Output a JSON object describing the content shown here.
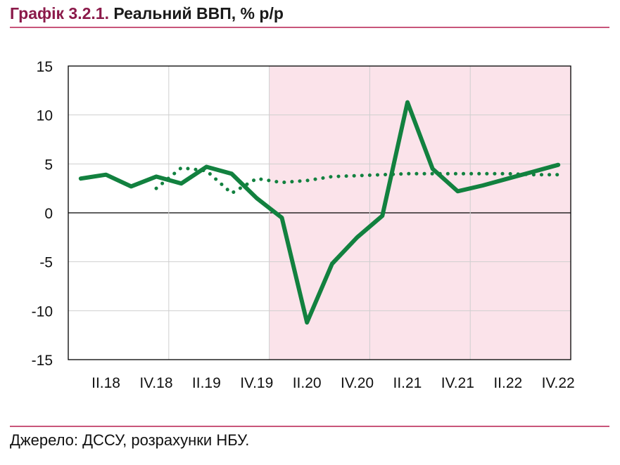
{
  "header": {
    "figure_number": "Графік 3.2.1.",
    "title": "Реальний ВВП, % р/р"
  },
  "footer": {
    "source": "Джерело: ДССУ, розрахунки НБУ."
  },
  "chart_data": {
    "type": "line",
    "x": [
      "I.18",
      "II.18",
      "III.18",
      "IV.18",
      "I.19",
      "II.19",
      "III.19",
      "IV.19",
      "I.20",
      "II.20",
      "III.20",
      "IV.20",
      "I.21",
      "II.21",
      "III.21",
      "IV.21",
      "I.22",
      "II.22",
      "III.22",
      "IV.22"
    ],
    "x_tick_labels": [
      "II.18",
      "IV.18",
      "II.19",
      "IV.19",
      "II.20",
      "IV.20",
      "II.21",
      "IV.21",
      "II.22",
      "IV.22"
    ],
    "ylim": [
      -15,
      15
    ],
    "yticks": [
      15,
      10,
      5,
      0,
      -5,
      -10,
      -15
    ],
    "grid": true,
    "shaded_region": {
      "from": "IV.19",
      "to": "IV.22",
      "color": "#fbe3ea"
    },
    "series": [
      {
        "style": "solid",
        "color": "#12813f",
        "values": [
          3.5,
          3.9,
          2.7,
          3.7,
          3.0,
          4.7,
          4.0,
          1.5,
          -0.5,
          -11.2,
          -5.2,
          -2.5,
          -0.3,
          11.3,
          4.5,
          2.2,
          2.8,
          3.5,
          4.2,
          4.9
        ]
      },
      {
        "style": "dotted",
        "color": "#12813f",
        "start": "IV.18",
        "values": [
          null,
          null,
          null,
          2.5,
          4.6,
          4.3,
          2.0,
          3.5,
          3.1,
          3.3,
          3.7,
          3.8,
          3.9,
          4.0,
          4.0,
          4.0,
          4.0,
          4.0,
          3.9,
          3.9
        ]
      }
    ]
  }
}
